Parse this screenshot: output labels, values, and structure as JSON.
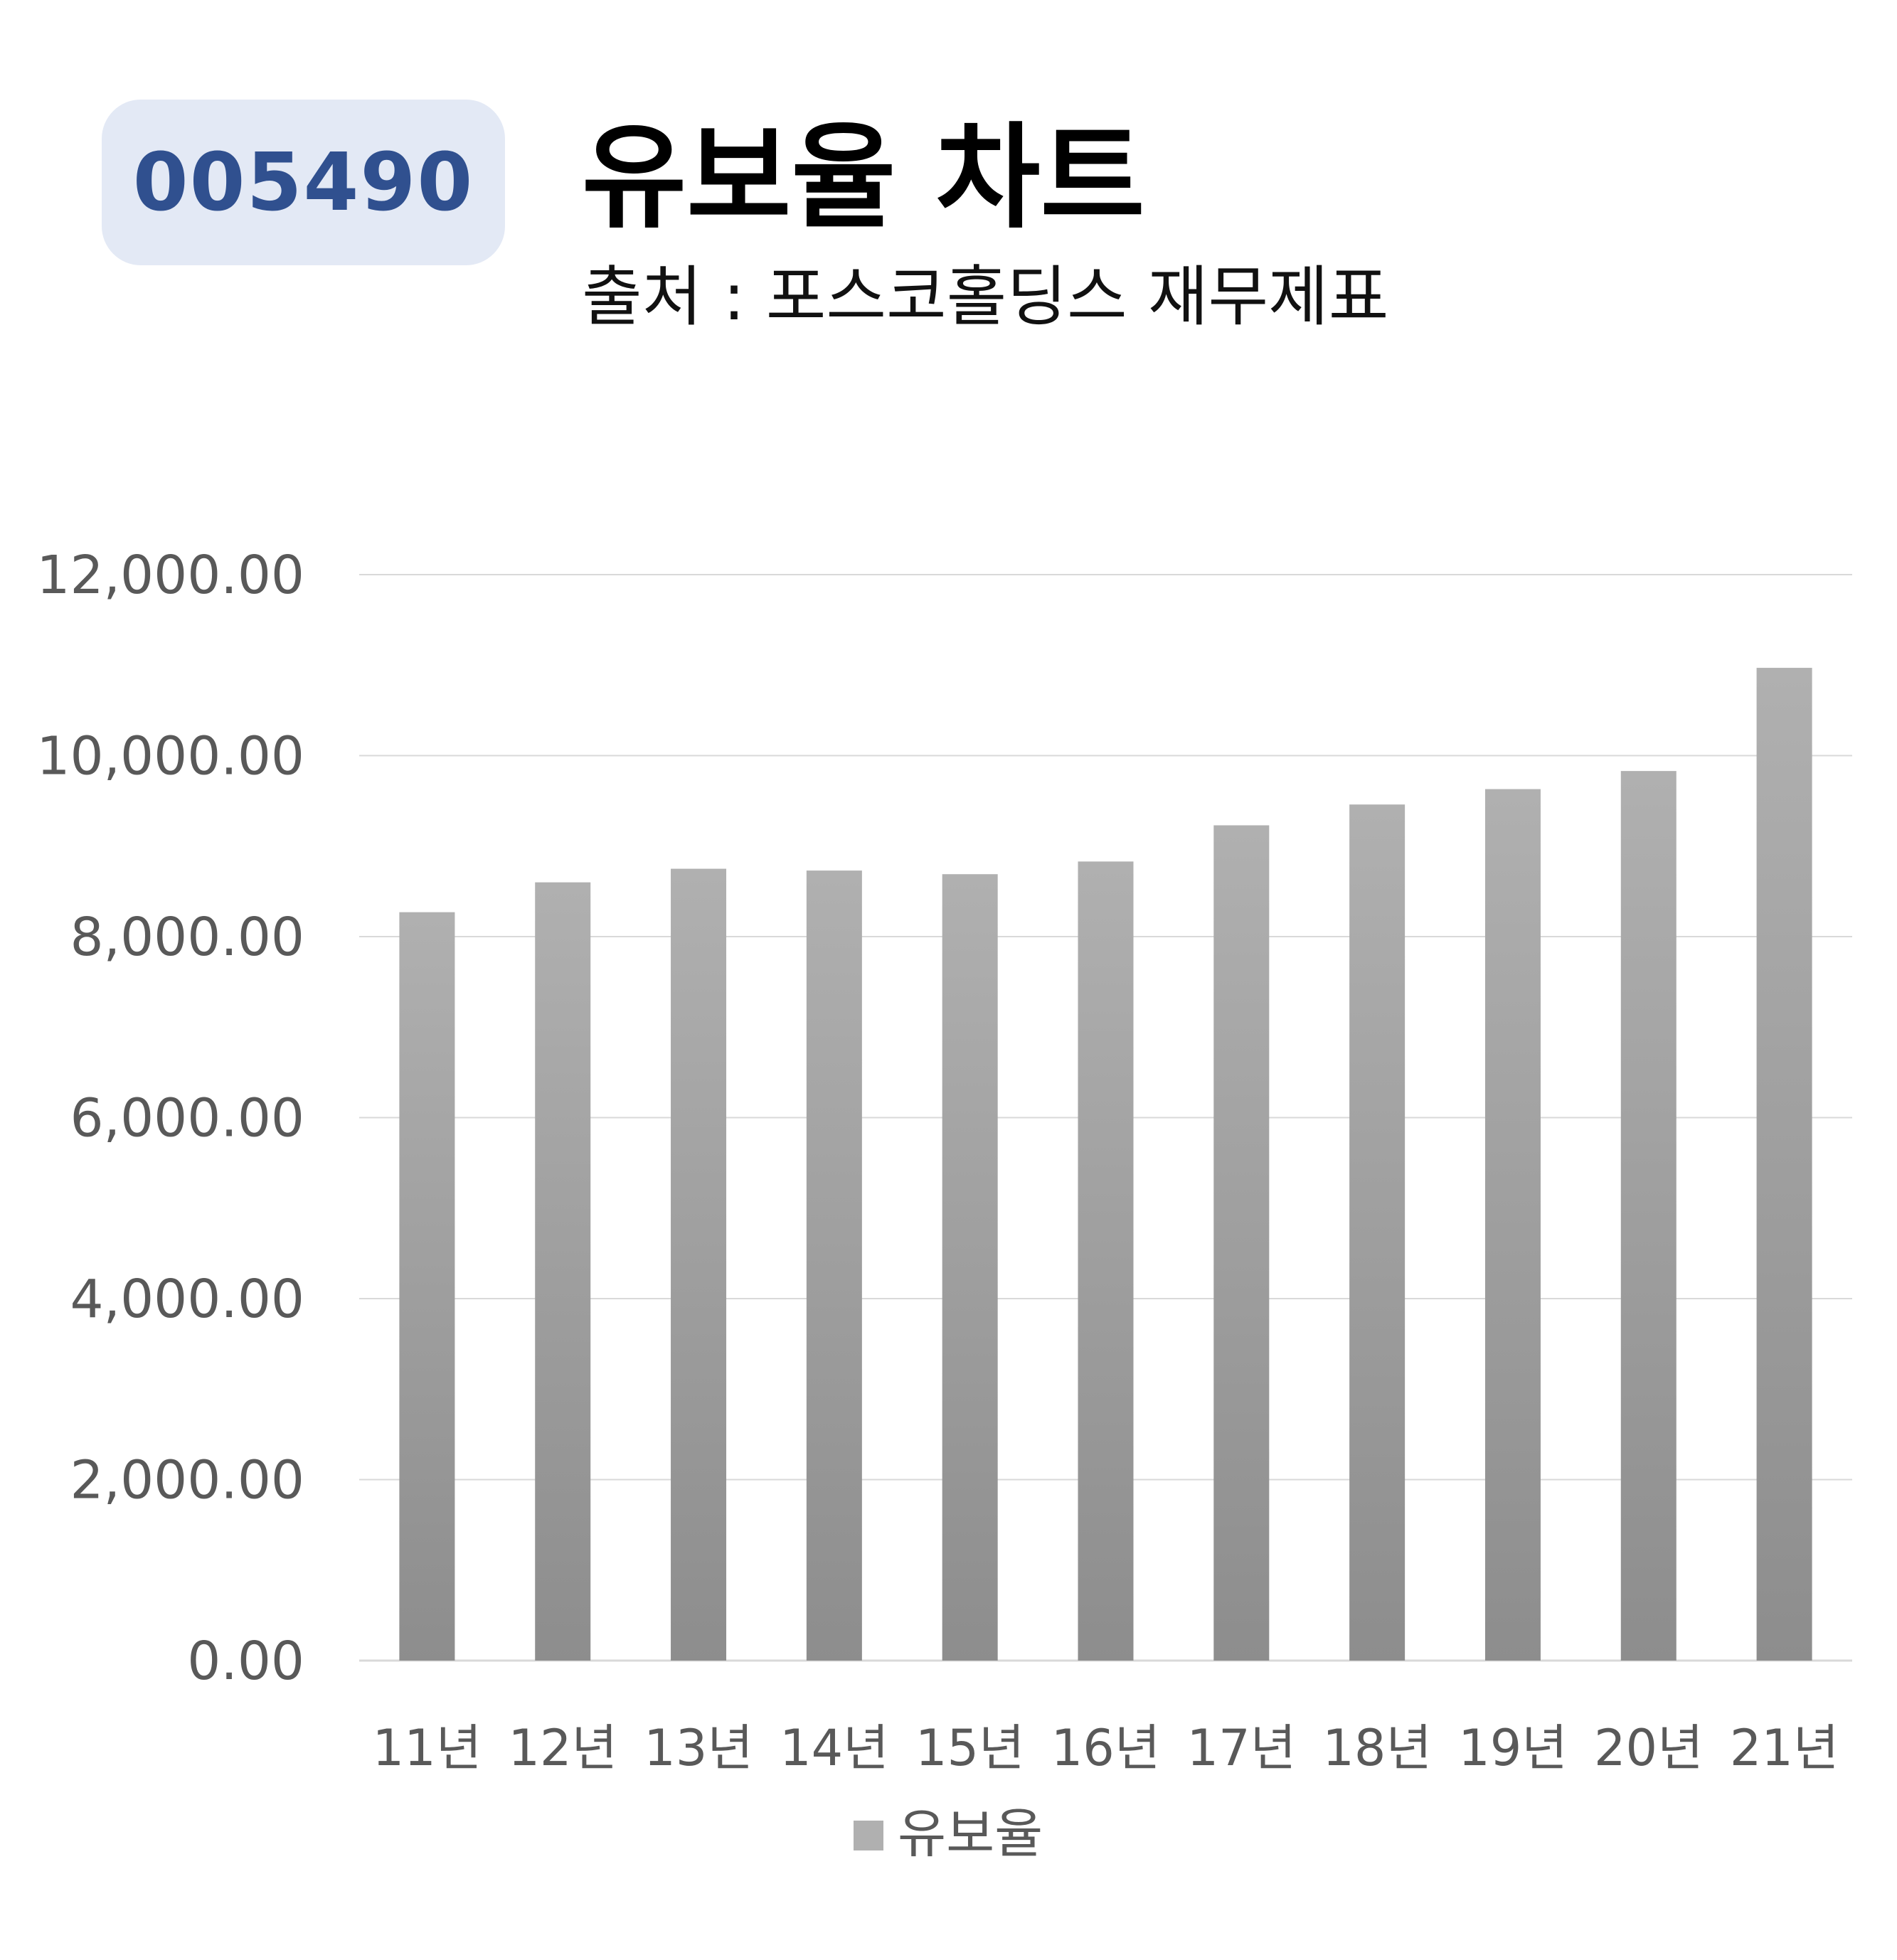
{
  "header": {
    "ticker": "005490",
    "title": "유보율 차트",
    "subtitle": "출처 : 포스코홀딩스 재무제표"
  },
  "colors": {
    "badge_background": "#e3e9f5",
    "badge_text": "#30508f",
    "bar_top": "#b0b0b0",
    "bar_bottom": "#8d8d8d",
    "gridline": "#d9d9d9",
    "axis_text": "#595959"
  },
  "chart_data": {
    "type": "bar",
    "categories": [
      "11년",
      "12년",
      "13년",
      "14년",
      "15년",
      "16년",
      "17년",
      "18년",
      "19년",
      "20년",
      "21년"
    ],
    "series": [
      {
        "name": "유보율",
        "values": [
          8270,
          8600,
          8750,
          8730,
          8690,
          8830,
          9230,
          9460,
          9630,
          9830,
          10970
        ]
      }
    ],
    "yticks": [
      "12,000.00",
      "10,000.00",
      "8,000.00",
      "6,000.00",
      "4,000.00",
      "2,000.00",
      "0.00"
    ],
    "ylim": [
      0,
      12000
    ],
    "grid": true,
    "legend_position": "bottom"
  }
}
